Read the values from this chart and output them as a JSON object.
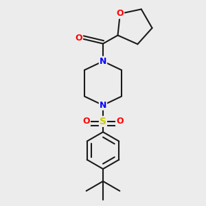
{
  "background_color": "#ececec",
  "bond_color": "#1a1a1a",
  "N_color": "#0000ff",
  "O_color": "#ff0000",
  "S_color": "#cccc00",
  "line_width": 1.5,
  "figsize": [
    3.0,
    3.0
  ],
  "dpi": 100,
  "xlim": [
    -1.8,
    1.8
  ],
  "ylim": [
    -2.6,
    2.0
  ]
}
